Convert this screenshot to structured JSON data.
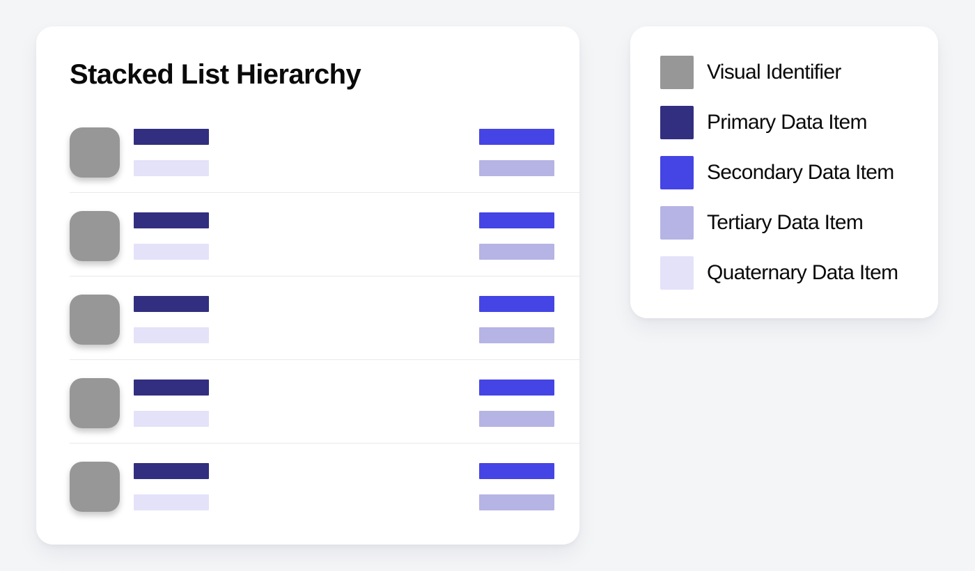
{
  "page": {
    "background": "#f4f5f7"
  },
  "palette": {
    "identifier": "#979797",
    "primary": "#322f80",
    "secondary": "#4544e4",
    "tertiary": "#b6b4e4",
    "quaternary": "#e3e2f9",
    "divider": "#e9e9e9",
    "card": "#ffffff",
    "text": "#0a0a0a"
  },
  "list_card": {
    "title": "Stacked List Hierarchy",
    "row_count": 5
  },
  "legend_card": {
    "items": [
      {
        "label": "Visual Identifier",
        "color": "#979797"
      },
      {
        "label": "Primary Data Item",
        "color": "#322f80"
      },
      {
        "label": "Secondary Data Item",
        "color": "#4544e4"
      },
      {
        "label": "Tertiary Data Item",
        "color": "#b6b4e4"
      },
      {
        "label": "Quaternary Data Item",
        "color": "#e3e2f9"
      }
    ]
  }
}
